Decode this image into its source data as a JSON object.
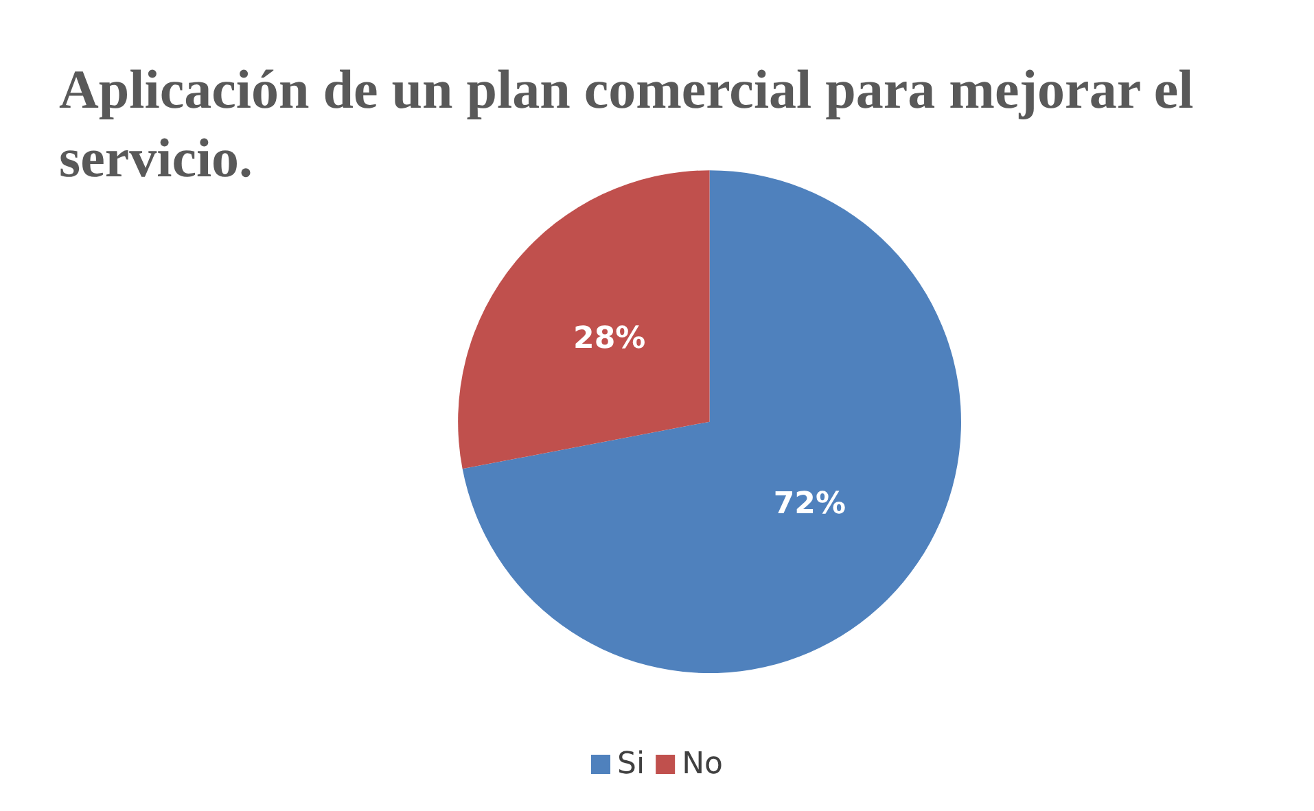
{
  "chart_data": {
    "type": "pie",
    "title": "Aplicación de un plan comercial para mejorar el servicio.",
    "categories": [
      "Si",
      "No"
    ],
    "values": [
      72,
      28
    ],
    "colors": [
      "#4f81bd",
      "#c0504d"
    ],
    "value_labels": [
      "72%",
      "28%"
    ],
    "legend": "bottom"
  }
}
